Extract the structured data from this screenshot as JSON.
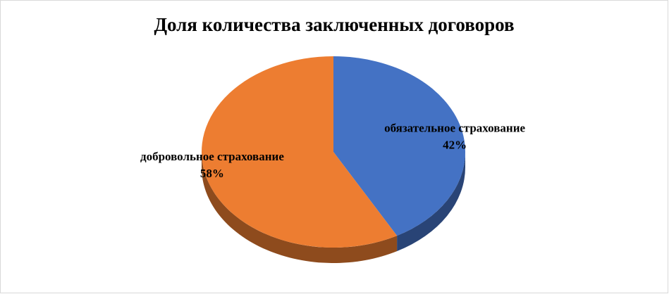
{
  "chart_data": {
    "type": "pie",
    "title": "Доля количества заключенных договоров",
    "categories": [
      "обязательное страхование",
      "добровольное страхование"
    ],
    "values": [
      42,
      58
    ],
    "value_labels": [
      "42%",
      "58%"
    ],
    "colors": [
      "#4472c4",
      "#ed7d31"
    ]
  }
}
